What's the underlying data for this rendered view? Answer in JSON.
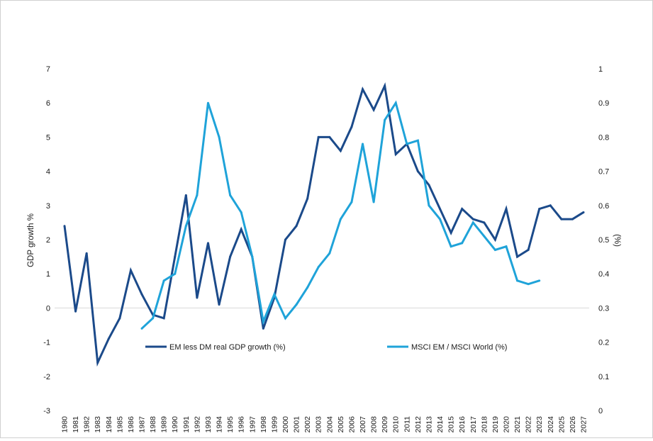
{
  "chart_data": {
    "type": "line",
    "title": "",
    "ylabel": "GDP growth %",
    "y2label": "(%)",
    "xlabel": "",
    "ylim": [
      -3,
      7
    ],
    "y2lim": [
      0,
      1
    ],
    "y_ticks": [
      "-3",
      "-2",
      "-1",
      "0",
      "1",
      "2",
      "3",
      "4",
      "5",
      "6",
      "7"
    ],
    "y2_ticks": [
      "0",
      "0.1",
      "0.2",
      "0.3",
      "0.4",
      "0.5",
      "0.6",
      "0.7",
      "0.8",
      "0.9",
      "1"
    ],
    "categories": [
      "1980",
      "1981",
      "1982",
      "1983",
      "1984",
      "1985",
      "1986",
      "1987",
      "1988",
      "1989",
      "1990",
      "1991",
      "1992",
      "1993",
      "1994",
      "1995",
      "1996",
      "1997",
      "1998",
      "1999",
      "2000",
      "2001",
      "2002",
      "2003",
      "2004",
      "2005",
      "2006",
      "2007",
      "2008",
      "2009",
      "2010",
      "2011",
      "2012",
      "2013",
      "2014",
      "2015",
      "2016",
      "2017",
      "2018",
      "2019",
      "2020",
      "2021",
      "2022",
      "2023",
      "2024",
      "2025",
      "2026",
      "2027"
    ],
    "legend_position": "bottom-inside",
    "series": [
      {
        "name": "EM less DM real GDP growth (%)",
        "axis": "left",
        "color": "#1b4a8a",
        "values": [
          2.4,
          -0.1,
          1.6,
          -1.6,
          -0.9,
          -0.3,
          1.1,
          0.4,
          -0.2,
          -0.3,
          1.5,
          3.3,
          0.3,
          1.9,
          0.1,
          1.5,
          2.3,
          1.5,
          -0.6,
          0.3,
          2.0,
          2.4,
          3.2,
          5.0,
          5.0,
          4.6,
          5.3,
          6.4,
          5.8,
          6.5,
          4.5,
          4.8,
          4.0,
          3.6,
          2.9,
          2.2,
          2.9,
          2.6,
          2.5,
          2.0,
          2.9,
          1.5,
          1.7,
          2.9,
          3.0,
          2.6,
          2.6,
          2.8
        ]
      },
      {
        "name": "MSCI EM / MSCI World (%)",
        "axis": "right",
        "color": "#1fa3d9",
        "values": [
          null,
          null,
          null,
          null,
          null,
          null,
          null,
          0.24,
          0.27,
          0.38,
          0.4,
          0.54,
          0.63,
          0.9,
          0.8,
          0.63,
          0.58,
          0.45,
          0.26,
          0.34,
          0.27,
          0.31,
          0.36,
          0.42,
          0.46,
          0.56,
          0.61,
          0.78,
          0.61,
          0.85,
          0.9,
          0.78,
          0.79,
          0.6,
          0.56,
          0.48,
          0.49,
          0.55,
          0.51,
          0.47,
          0.48,
          0.38,
          0.37,
          0.38,
          null,
          null,
          null,
          null
        ]
      }
    ]
  }
}
